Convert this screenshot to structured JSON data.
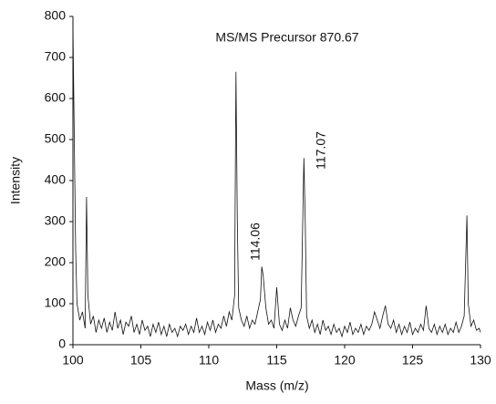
{
  "chart_data": {
    "type": "line",
    "title": "MS/MS Precursor 870.67",
    "xlabel": "Mass (m/z)",
    "ylabel": "Intensity",
    "xlim": [
      100,
      130
    ],
    "ylim": [
      0,
      800
    ],
    "xticks": [
      100,
      105,
      110,
      115,
      120,
      125,
      130
    ],
    "yticks": [
      0,
      100,
      200,
      300,
      400,
      500,
      600,
      700,
      800
    ],
    "annotations": [
      "114.06",
      "117.07"
    ],
    "series": [
      {
        "color": "#111111",
        "x": [
          100.0,
          100.1,
          100.2,
          100.3,
          100.5,
          100.7,
          100.9,
          101.0,
          101.1,
          101.3,
          101.5,
          101.7,
          101.9,
          102.1,
          102.3,
          102.5,
          102.7,
          102.9,
          103.1,
          103.3,
          103.5,
          103.7,
          103.9,
          104.1,
          104.3,
          104.5,
          104.7,
          104.9,
          105.1,
          105.3,
          105.5,
          105.7,
          105.9,
          106.1,
          106.3,
          106.5,
          106.7,
          106.9,
          107.1,
          107.3,
          107.5,
          107.7,
          107.9,
          108.1,
          108.3,
          108.5,
          108.7,
          108.9,
          109.1,
          109.3,
          109.5,
          109.7,
          109.9,
          110.1,
          110.3,
          110.5,
          110.7,
          110.9,
          111.1,
          111.3,
          111.5,
          111.7,
          111.9,
          112.0,
          112.1,
          112.2,
          112.4,
          112.6,
          112.8,
          113.0,
          113.2,
          113.4,
          113.6,
          113.8,
          113.9,
          114.0,
          114.2,
          114.4,
          114.6,
          114.8,
          115.0,
          115.2,
          115.4,
          115.6,
          115.8,
          116.0,
          116.2,
          116.4,
          116.6,
          116.8,
          117.0,
          117.1,
          117.2,
          117.4,
          117.6,
          117.8,
          118.0,
          118.2,
          118.4,
          118.6,
          118.8,
          119.0,
          119.2,
          119.4,
          119.6,
          119.8,
          120.0,
          120.2,
          120.4,
          120.6,
          120.8,
          121.0,
          121.2,
          121.4,
          121.6,
          121.8,
          122.0,
          122.2,
          122.4,
          122.6,
          122.8,
          123.0,
          123.2,
          123.4,
          123.6,
          123.8,
          124.0,
          124.2,
          124.4,
          124.6,
          124.8,
          125.0,
          125.2,
          125.4,
          125.6,
          125.8,
          126.0,
          126.2,
          126.4,
          126.6,
          126.8,
          127.0,
          127.2,
          127.4,
          127.6,
          127.8,
          128.0,
          128.2,
          128.4,
          128.6,
          128.8,
          129.0,
          129.1,
          129.3,
          129.5,
          129.7,
          129.9,
          130.0
        ],
        "values": [
          780,
          500,
          230,
          100,
          60,
          80,
          40,
          360,
          120,
          50,
          70,
          30,
          60,
          40,
          65,
          30,
          55,
          35,
          80,
          40,
          60,
          25,
          55,
          45,
          70,
          30,
          50,
          25,
          60,
          35,
          45,
          20,
          50,
          30,
          55,
          25,
          45,
          20,
          50,
          30,
          40,
          20,
          45,
          35,
          50,
          25,
          45,
          30,
          65,
          30,
          45,
          25,
          55,
          35,
          60,
          30,
          50,
          40,
          70,
          45,
          80,
          60,
          120,
          665,
          300,
          90,
          60,
          45,
          70,
          40,
          60,
          50,
          80,
          110,
          190,
          170,
          90,
          50,
          60,
          40,
          140,
          50,
          35,
          60,
          40,
          90,
          60,
          45,
          70,
          90,
          455,
          300,
          70,
          40,
          60,
          30,
          50,
          25,
          60,
          35,
          45,
          25,
          50,
          30,
          40,
          20,
          45,
          30,
          55,
          25,
          40,
          30,
          50,
          25,
          45,
          35,
          50,
          80,
          60,
          40,
          70,
          95,
          50,
          40,
          60,
          30,
          50,
          25,
          45,
          30,
          55,
          25,
          40,
          30,
          50,
          35,
          95,
          40,
          30,
          50,
          25,
          45,
          30,
          50,
          25,
          40,
          30,
          55,
          30,
          45,
          70,
          315,
          100,
          45,
          60,
          35,
          40,
          30
        ]
      }
    ]
  }
}
